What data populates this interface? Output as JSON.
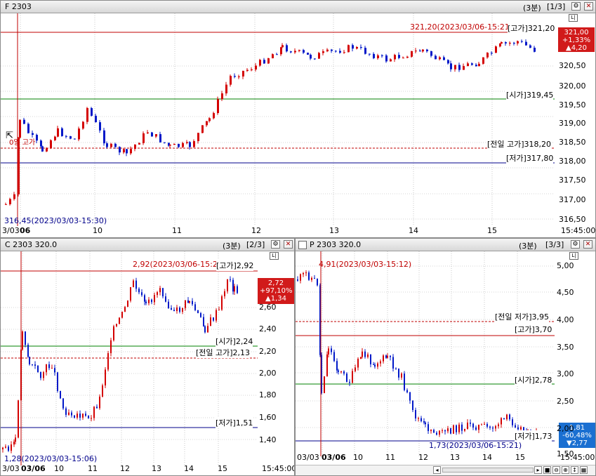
{
  "panels": {
    "f": {
      "title": "F 2303",
      "info": "(3분)",
      "page": "[1/3]",
      "hline_labels": [
        {
          "text": "321,20(2023/03/06-15:21)",
          "color": "#c00000"
        },
        {
          "text": "[고가]321,20",
          "color": "#000000"
        },
        {
          "text": "[시가]319,45",
          "color": "#000000"
        },
        {
          "text": "[전일 고가]318,20",
          "color": "#000000"
        },
        {
          "text": "[저가]317,80",
          "color": "#000000"
        }
      ],
      "low_note": "316,45(2023/03/03-15:30)",
      "cursor_note": "0일 고가",
      "price_box": {
        "price": "321,00",
        "pct": "+1,33%",
        "change": "▲4,20"
      },
      "y_ticks": [
        "320,50",
        "320,00",
        "319,50",
        "319,00",
        "318,50",
        "318,00",
        "317,50",
        "317,00",
        "316,50"
      ],
      "x_ticks": [
        "3/03",
        "06",
        "10",
        "11",
        "12",
        "13",
        "14",
        "15",
        "15:45:00"
      ]
    },
    "c": {
      "title": "C 2303 320.0",
      "info": "(3분)",
      "page": "[2/3]",
      "hline_labels": [
        {
          "text": "2,92(2023/03/06-15:21)",
          "color": "#c00000"
        },
        {
          "text": "[고가]2,92",
          "color": "#000000"
        },
        {
          "text": "[시가]2,24",
          "color": "#000000"
        },
        {
          "text": "[전일 고가]2,13",
          "color": "#000000"
        },
        {
          "text": "[저가]1,51",
          "color": "#000000"
        }
      ],
      "low_note": "1,28(2023/03/03-15:06)",
      "price_box": {
        "price": "2,72",
        "pct": "+97,10%",
        "change": "▲1,34"
      },
      "y_ticks": [
        "2,60",
        "2,40",
        "2,20",
        "2,00",
        "1,80",
        "1,60",
        "1,40"
      ],
      "x_ticks": [
        "3/03",
        "03/06",
        "10",
        "11",
        "12",
        "13",
        "14",
        "15",
        "15:45:00"
      ]
    },
    "p": {
      "title": "P 2303 320.0",
      "info": "(3분)",
      "page": "[3/3]",
      "hline_labels": [
        {
          "text": "4,91(2023/03/03-15:12)",
          "color": "#c00000"
        },
        {
          "text": "[전일 저가]3,95",
          "color": "#000000"
        },
        {
          "text": "[고가]3,70",
          "color": "#000000"
        },
        {
          "text": "[시가]2,78",
          "color": "#000000"
        },
        {
          "text": "[저가]1,73",
          "color": "#000000"
        }
      ],
      "low_note": "1,73(2023/03/06-15:21)",
      "price_box": {
        "price": "1,81",
        "pct": "-60,48%",
        "change": "▼2,77"
      },
      "y_ticks": [
        "5,00",
        "4,50",
        "4,00",
        "3,50",
        "3,00",
        "2,50",
        "2,00",
        "1,50"
      ],
      "x_ticks": [
        "03/03",
        "03/06",
        "10",
        "11",
        "12",
        "13",
        "14",
        "15",
        "15:45:00"
      ]
    }
  },
  "colors": {
    "up": "#d40000",
    "down": "#0018c8",
    "high_line": "#c00000",
    "open_line": "#008000",
    "prev_line": "#c00000",
    "low_line": "#00008b",
    "box_up": "#d11a1a",
    "box_down": "#1a6fd1"
  },
  "icons": {
    "settings": "settings-icon",
    "close": "close-icon",
    "scale": "scale-icon"
  }
}
